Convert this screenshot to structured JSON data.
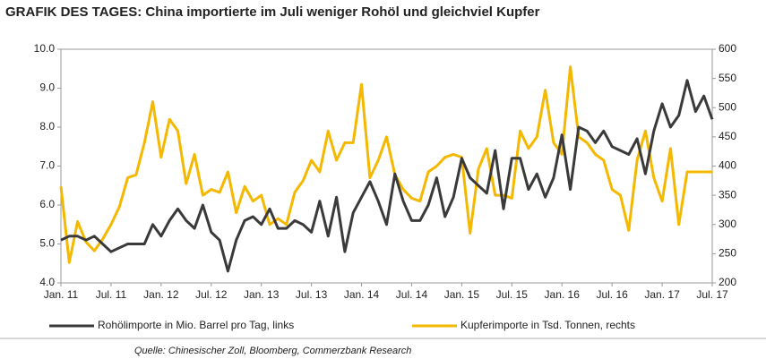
{
  "chart_data": {
    "type": "line",
    "title": "GRAFIK DES TAGES: China importierte im Juli weniger Rohöl und gleichviel Kupfer",
    "source": "Quelle: Chinesischer Zoll, Bloomberg, Commerzbank Research",
    "categories": [
      "Jan. 11",
      null,
      null,
      null,
      null,
      null,
      "Jul. 11",
      null,
      null,
      null,
      null,
      null,
      "Jan. 12",
      null,
      null,
      null,
      null,
      null,
      "Jul. 12",
      null,
      null,
      null,
      null,
      null,
      "Jan. 13",
      null,
      null,
      null,
      null,
      null,
      "Jul. 13",
      null,
      null,
      null,
      null,
      null,
      "Jan. 14",
      null,
      null,
      null,
      null,
      null,
      "Jul. 14",
      null,
      null,
      null,
      null,
      null,
      "Jan. 15",
      null,
      null,
      null,
      null,
      null,
      "Jul. 15",
      null,
      null,
      null,
      null,
      null,
      "Jan. 16",
      null,
      null,
      null,
      null,
      null,
      "Jul. 16",
      null,
      null,
      null,
      null,
      null,
      "Jan. 17",
      null,
      null,
      null,
      null,
      null,
      "Jul. 17"
    ],
    "series": [
      {
        "name": "Rohölimporte in Mio. Barrel pro Tag, links",
        "color": "#3a3a3a",
        "axis": "y",
        "values": [
          5.1,
          5.2,
          5.2,
          5.1,
          5.2,
          5.0,
          4.8,
          4.9,
          5.0,
          5.0,
          5.0,
          5.5,
          5.2,
          5.6,
          5.9,
          5.6,
          5.4,
          6.0,
          5.3,
          5.1,
          4.3,
          5.1,
          5.6,
          5.7,
          5.5,
          5.9,
          5.4,
          5.4,
          5.6,
          5.5,
          5.3,
          6.1,
          5.2,
          6.2,
          4.8,
          5.8,
          6.2,
          6.6,
          6.1,
          5.5,
          6.8,
          6.1,
          5.6,
          5.6,
          6.0,
          6.7,
          5.7,
          6.2,
          7.2,
          6.7,
          6.5,
          6.3,
          7.4,
          5.9,
          7.2,
          7.2,
          6.4,
          6.8,
          6.2,
          6.7,
          7.8,
          6.4,
          8.0,
          7.9,
          7.6,
          7.9,
          7.5,
          7.4,
          7.3,
          7.7,
          6.8,
          7.9,
          8.6,
          8.0,
          8.3,
          9.2,
          8.4,
          8.8,
          8.2
        ]
      },
      {
        "name": "Kupferimporte in Tsd. Tonnen, rechts",
        "color": "#f5b800",
        "axis": "y2",
        "values": [
          365,
          235,
          305,
          270,
          255,
          275,
          300,
          330,
          380,
          385,
          440,
          510,
          415,
          480,
          460,
          370,
          420,
          350,
          360,
          355,
          390,
          320,
          365,
          340,
          350,
          300,
          310,
          300,
          355,
          375,
          410,
          390,
          460,
          410,
          440,
          440,
          540,
          380,
          410,
          450,
          385,
          360,
          345,
          340,
          390,
          400,
          415,
          420,
          415,
          285,
          395,
          430,
          350,
          350,
          345,
          460,
          430,
          450,
          530,
          440,
          420,
          570,
          450,
          440,
          420,
          410,
          360,
          350,
          290,
          410,
          460,
          380,
          340,
          430,
          300,
          390,
          390,
          390,
          390
        ]
      }
    ],
    "ylim": [
      4,
      10
    ],
    "yticks": [
      {
        "value": 4,
        "label": "4.0"
      },
      {
        "value": 5,
        "label": "5.0"
      },
      {
        "value": 6,
        "label": "6.0"
      },
      {
        "value": 7,
        "label": "7.0"
      },
      {
        "value": 8,
        "label": "8.0"
      },
      {
        "value": 9,
        "label": "9.0"
      },
      {
        "value": 10,
        "label": "10.0"
      }
    ],
    "y2lim": [
      200,
      600
    ],
    "y2ticks": [
      200,
      250,
      300,
      350,
      400,
      450,
      500,
      550,
      600
    ],
    "grid": false
  }
}
